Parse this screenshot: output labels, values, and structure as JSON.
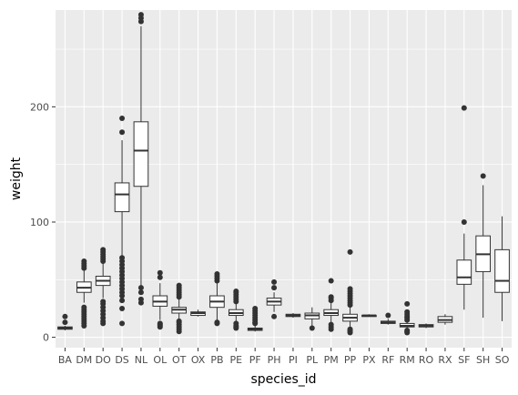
{
  "chart_data": {
    "type": "boxplot",
    "title": "",
    "xlabel": "species_id",
    "ylabel": "weight",
    "ylim": [
      -9,
      284
    ],
    "yticks": [
      0,
      100,
      200
    ],
    "ytick_labels": [
      "0",
      "100",
      "200"
    ],
    "grid": true,
    "panel_background": "#ebebeb",
    "grid_color": "#ffffff",
    "box_fill": "#ffffff",
    "line_color": "#333333",
    "outlier_color": "#333333",
    "categories": [
      "BA",
      "DM",
      "DO",
      "DS",
      "NL",
      "OL",
      "OT",
      "OX",
      "PB",
      "PE",
      "PF",
      "PH",
      "PI",
      "PL",
      "PM",
      "PP",
      "PX",
      "RF",
      "RM",
      "RO",
      "RX",
      "SF",
      "SH",
      "SO"
    ],
    "boxes": [
      {
        "category": "BA",
        "whisker_low": 6,
        "q1": 7,
        "median": 8,
        "q3": 9,
        "whisker_high": 10,
        "outliers": [
          13,
          18
        ]
      },
      {
        "category": "DM",
        "whisker_low": 30,
        "q1": 39,
        "median": 43,
        "q3": 48,
        "whisker_high": 58,
        "outliers": [
          10,
          12,
          14,
          16,
          18,
          20,
          22,
          24,
          26,
          60,
          62,
          64,
          66
        ]
      },
      {
        "category": "DO",
        "whisker_low": 34,
        "q1": 45,
        "median": 49,
        "q3": 53,
        "whisker_high": 64,
        "outliers": [
          12,
          14,
          17,
          20,
          23,
          26,
          29,
          31,
          66,
          68,
          70,
          72,
          74,
          76
        ]
      },
      {
        "category": "DS",
        "whisker_low": 70,
        "q1": 109,
        "median": 124,
        "q3": 134,
        "whisker_high": 171,
        "outliers": [
          12,
          25,
          32,
          36,
          39,
          42,
          45,
          48,
          51,
          54,
          57,
          60,
          63,
          66,
          69,
          178,
          190
        ]
      },
      {
        "category": "NL",
        "whisker_low": 45,
        "q1": 131,
        "median": 162,
        "q3": 187,
        "whisker_high": 270,
        "outliers": [
          30,
          33,
          39,
          43,
          274,
          277,
          280
        ]
      },
      {
        "category": "OL",
        "whisker_low": 15,
        "q1": 27,
        "median": 31,
        "q3": 36,
        "whisker_high": 47,
        "outliers": [
          9,
          10,
          11,
          12,
          52,
          56
        ]
      },
      {
        "category": "OT",
        "whisker_low": 16,
        "q1": 21,
        "median": 24,
        "q3": 26,
        "whisker_high": 33,
        "outliers": [
          5,
          7,
          9,
          11,
          13,
          14,
          35,
          37,
          39,
          41,
          43,
          45
        ]
      },
      {
        "category": "OX",
        "whisker_low": 18,
        "q1": 19,
        "median": 21,
        "q3": 22,
        "whisker_high": 24,
        "outliers": []
      },
      {
        "category": "PB",
        "whisker_low": 15,
        "q1": 26,
        "median": 31,
        "q3": 36,
        "whisker_high": 48,
        "outliers": [
          12,
          13,
          49,
          51,
          53,
          55
        ]
      },
      {
        "category": "PE",
        "whisker_low": 14,
        "q1": 19,
        "median": 21,
        "q3": 24,
        "whisker_high": 30,
        "outliers": [
          8,
          9,
          10,
          12,
          31,
          33,
          35,
          37,
          39,
          40
        ]
      },
      {
        "category": "PF",
        "whisker_low": 5,
        "q1": 6,
        "median": 7,
        "q3": 8,
        "whisker_high": 10,
        "outliers": [
          12,
          13,
          15,
          17,
          19,
          21,
          23,
          25
        ]
      },
      {
        "category": "PH",
        "whisker_low": 22,
        "q1": 28,
        "median": 31,
        "q3": 34,
        "whisker_high": 39,
        "outliers": [
          18,
          43,
          48
        ]
      },
      {
        "category": "PI",
        "whisker_low": 17,
        "q1": 18,
        "median": 19,
        "q3": 20,
        "whisker_high": 21,
        "outliers": []
      },
      {
        "category": "PL",
        "whisker_low": 8,
        "q1": 16,
        "median": 19,
        "q3": 21,
        "whisker_high": 26,
        "outliers": [
          8
        ]
      },
      {
        "category": "PM",
        "whisker_low": 13,
        "q1": 19,
        "median": 21,
        "q3": 24,
        "whisker_high": 30,
        "outliers": [
          7,
          9,
          11,
          32,
          34,
          35,
          49
        ]
      },
      {
        "category": "PP",
        "whisker_low": 8,
        "q1": 14,
        "median": 17,
        "q3": 20,
        "whisker_high": 26,
        "outliers": [
          4,
          5,
          6,
          7,
          28,
          30,
          32,
          34,
          36,
          38,
          40,
          42,
          74
        ]
      },
      {
        "category": "PX",
        "whisker_low": 18,
        "q1": 18,
        "median": 19,
        "q3": 19,
        "whisker_high": 20,
        "outliers": []
      },
      {
        "category": "RF",
        "whisker_low": 11,
        "q1": 12,
        "median": 13,
        "q3": 14,
        "whisker_high": 16,
        "outliers": [
          19
        ]
      },
      {
        "category": "RM",
        "whisker_low": 7,
        "q1": 9,
        "median": 10,
        "q3": 12,
        "whisker_high": 14,
        "outliers": [
          4,
          5,
          6,
          15,
          17,
          18,
          20,
          22,
          29
        ]
      },
      {
        "category": "RO",
        "whisker_low": 8,
        "q1": 9,
        "median": 10,
        "q3": 11,
        "whisker_high": 12,
        "outliers": []
      },
      {
        "category": "RX",
        "whisker_low": 11,
        "q1": 13,
        "median": 15,
        "q3": 18,
        "whisker_high": 20,
        "outliers": []
      },
      {
        "category": "SF",
        "whisker_low": 24,
        "q1": 46,
        "median": 52,
        "q3": 67,
        "whisker_high": 90,
        "outliers": [
          100,
          199
        ]
      },
      {
        "category": "SH",
        "whisker_low": 17,
        "q1": 57,
        "median": 72,
        "q3": 88,
        "whisker_high": 132,
        "outliers": [
          140
        ]
      },
      {
        "category": "SO",
        "whisker_low": 14,
        "q1": 39,
        "median": 49,
        "q3": 76,
        "whisker_high": 105,
        "outliers": []
      }
    ]
  }
}
